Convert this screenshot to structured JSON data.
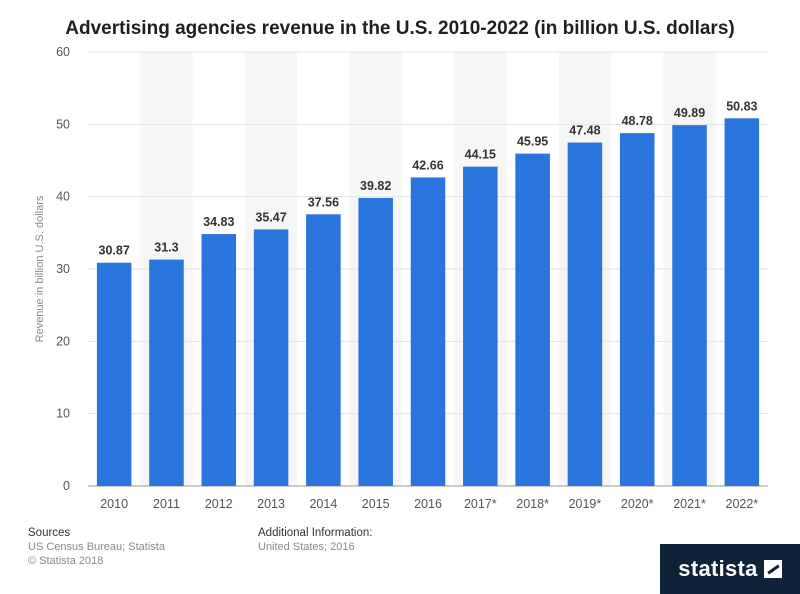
{
  "chart_data": {
    "type": "bar",
    "title": "Advertising agencies revenue in the U.S. 2010-2022 (in billion U.S. dollars)",
    "xlabel": "",
    "ylabel": "Revenue in billion U.S. dollars",
    "ylim": [
      0,
      60
    ],
    "yticks": [
      0,
      10,
      20,
      30,
      40,
      50,
      60
    ],
    "grid": true,
    "categories": [
      "2010",
      "2011",
      "2012",
      "2013",
      "2014",
      "2015",
      "2016",
      "2017*",
      "2018*",
      "2019*",
      "2020*",
      "2021*",
      "2022*"
    ],
    "values": [
      30.87,
      31.3,
      34.83,
      35.47,
      37.56,
      39.82,
      42.66,
      44.15,
      45.95,
      47.48,
      48.78,
      49.89,
      50.83
    ],
    "value_labels": [
      "30.87",
      "31.3",
      "34.83",
      "35.47",
      "37.56",
      "39.82",
      "42.66",
      "44.15",
      "45.95",
      "47.48",
      "48.78",
      "49.89",
      "50.83"
    ],
    "bar_color": "#2a74dd"
  },
  "footer": {
    "sources_heading": "Sources",
    "sources_line1": "US Census Bureau; Statista",
    "sources_line2": "© Statista 2018",
    "info_heading": "Additional Information:",
    "info_line1": "United States; 2016"
  },
  "brand": {
    "name": "statista",
    "icon": "statista-logo-icon"
  }
}
